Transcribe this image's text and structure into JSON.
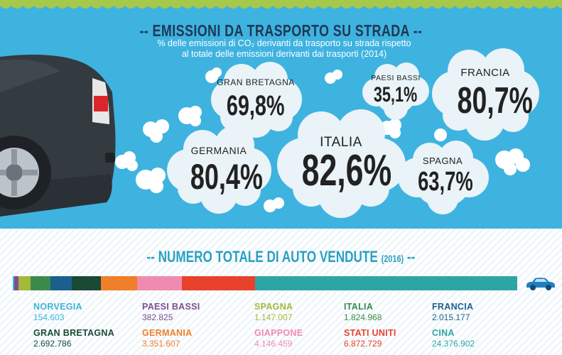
{
  "title": "-- EMISSIONI DA TRASPORTO SU STRADA --",
  "subtitle_line1": "% delle emissioni di CO₂ derivanti da trasporto su strada rispetto",
  "subtitle_line2": "al totale delle emissioni derivanti dai trasporti (2014)",
  "clouds": [
    {
      "country": "GRAN BRETAGNA",
      "value": "69,8%"
    },
    {
      "country": "PAESI BASSI",
      "value": "35,1%"
    },
    {
      "country": "FRANCIA",
      "value": "80,7%"
    },
    {
      "country": "GERMANIA",
      "value": "80,4%"
    },
    {
      "country": "ITALIA",
      "value": "82,6%"
    },
    {
      "country": "SPAGNA",
      "value": "63,7%"
    }
  ],
  "title2_main": "-- NUMERO TOTALE DI AUTO VENDUTE",
  "title2_year": "(2016)",
  "title2_end": " --",
  "sales": [
    {
      "country": "NORVEGIA",
      "value": "154.603",
      "color": "#3cb6d6"
    },
    {
      "country": "PAESI BASSI",
      "value": "382.825",
      "color": "#7c4f8e"
    },
    {
      "country": "SPAGNA",
      "value": "1.147.007",
      "color": "#a4b83a"
    },
    {
      "country": "ITALIA",
      "value": "1.824.968",
      "color": "#3c8a4a"
    },
    {
      "country": "FRANCIA",
      "value": "2.015.177",
      "color": "#1b5f8e"
    },
    {
      "country": "GRAN BRETAGNA",
      "value": "2.692.786",
      "color": "#1a4a35"
    },
    {
      "country": "GERMANIA",
      "value": "3.351.607",
      "color": "#f07e2a"
    },
    {
      "country": "GIAPPONE",
      "value": "4.146.459",
      "color": "#f08bb0"
    },
    {
      "country": "STATI UNITI",
      "value": "6.872.729",
      "color": "#e8412c"
    },
    {
      "country": "CINA",
      "value": "24.376.902",
      "color": "#2ea5a5"
    }
  ],
  "bar_colors": {
    "norvegia": "#3cb6d6",
    "paesi_bassi": "#7c4f8e",
    "spagna": "#a4b83a",
    "italia": "#3c8a4a",
    "francia": "#1b5f8e",
    "gran_bretagna": "#1a4a35",
    "germania": "#f07e2a",
    "giappone": "#f08bb0",
    "stati_uniti": "#e8412c",
    "cina": "#2ea5a5"
  },
  "icons": {
    "car_rear": "car-rear-icon",
    "car_small": "small-car-icon"
  }
}
